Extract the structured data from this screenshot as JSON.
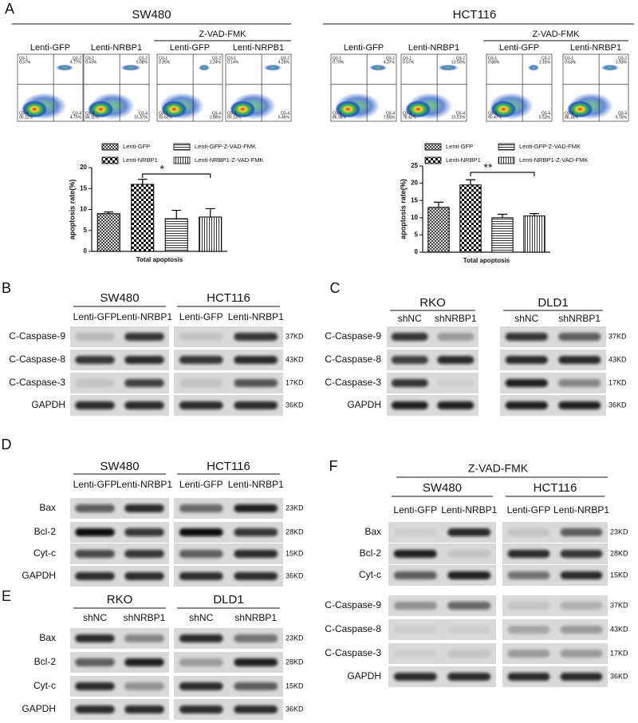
{
  "panel_a": {
    "label": "A",
    "groups": [
      {
        "cell_line": "SW480",
        "treatment": "Z-VAD-FMK",
        "samples": [
          {
            "name": "Lenti-GFP",
            "quadrants": [
              [
                "Q3-1",
                "0.37%"
              ],
              [
                "Q3-2",
                "4.77%"
              ],
              [
                "Q3-3",
                "90.12%"
              ],
              [
                "Q3-4",
                "4.75%"
              ]
            ]
          },
          {
            "name": "Lenti-NRBP1",
            "quadrants": [
              [
                "Q3-1",
                "0.43%"
              ],
              [
                "Q3-2",
                "5.08%"
              ],
              [
                "Q3-3",
                "84.11%"
              ],
              [
                "Q3-4",
                "10.37%"
              ]
            ]
          },
          {
            "name": "Lenti-GFP",
            "quadrants": [
              [
                "Q3-1",
                "0.35%"
              ],
              [
                "Q3-2",
                "2.24%"
              ],
              [
                "Q3-3",
                "93.53%"
              ],
              [
                "Q3-4",
                "2.88%"
              ]
            ]
          },
          {
            "name": "Lenti-NRPB1",
            "quadrants": [
              [
                "Q3-1",
                "0.14%"
              ],
              [
                "Q3-2",
                "4.26%"
              ],
              [
                "Q3-3",
                "90.13%"
              ],
              [
                "Q3-4",
                "5.46%"
              ]
            ]
          }
        ]
      },
      {
        "cell_line": "HCT116",
        "treatment": "Z-VAD-FMK",
        "samples": [
          {
            "name": "Lenti-GFP",
            "quadrants": [
              [
                "Q3-1",
                "0.79%"
              ],
              [
                "Q3-2",
                "4.37%"
              ],
              [
                "Q3-3",
                "86.98%"
              ],
              [
                "Q3-4",
                "7.85%"
              ]
            ]
          },
          {
            "name": "Lenti-NRBP1",
            "quadrants": [
              [
                "Q3-1",
                "0.57%"
              ],
              [
                "Q3-2",
                "13.50%"
              ],
              [
                "Q3-3",
                "78.42%"
              ],
              [
                "Q3-4",
                "15.51%"
              ]
            ]
          },
          {
            "name": "Lenti-GFP",
            "quadrants": [
              [
                "Q3-1",
                "0.88%"
              ],
              [
                "Q3-2",
                "3.15%"
              ],
              [
                "Q3-3",
                "90.47%"
              ],
              [
                "Q3-4",
                "5.53%"
              ]
            ]
          },
          {
            "name": "Lenti-NRBP1",
            "quadrants": [
              [
                "Q3-1",
                "0.63%"
              ],
              [
                "Q3-2",
                "3.93%"
              ],
              [
                "Q3-3",
                "88.16%"
              ],
              [
                "Q3-4",
                "6.76%"
              ]
            ]
          }
        ]
      }
    ]
  },
  "chart_data": [
    {
      "type": "bar",
      "categories": [
        "Total apoptosis"
      ],
      "ylabel": "apoptosis rate(%)",
      "annotation": "*",
      "ylim": [
        0,
        20
      ],
      "yticks": [
        0,
        5,
        10,
        15,
        20
      ],
      "series": [
        {
          "name": "Lenti-GFP",
          "pattern": "crosshatch",
          "color": "#000000",
          "values": [
            9
          ],
          "errors": [
            0.4
          ]
        },
        {
          "name": "Lenti-NRBP1",
          "pattern": "checker",
          "color": "#000000",
          "values": [
            16
          ],
          "errors": [
            1.2
          ]
        },
        {
          "name": "Lenti-GFP-Z-VAD-FMK",
          "pattern": "horizontal",
          "color": "#000000",
          "values": [
            7.8
          ],
          "errors": [
            2
          ]
        },
        {
          "name": "Lenti-NRBP1-Z-VAD-FMK",
          "pattern": "vertical",
          "color": "#000000",
          "values": [
            8.2
          ],
          "errors": [
            2
          ]
        }
      ]
    },
    {
      "type": "bar",
      "categories": [
        "Total apoptosis"
      ],
      "ylabel": "apoptosis rate(%)",
      "annotation": "**",
      "ylim": [
        0,
        25
      ],
      "yticks": [
        0,
        5,
        10,
        15,
        20,
        25
      ],
      "series": [
        {
          "name": "Lenti-GFP",
          "pattern": "crosshatch",
          "color": "#000000",
          "values": [
            13
          ],
          "errors": [
            1.5
          ]
        },
        {
          "name": "Lenti-NRBP1",
          "pattern": "checker",
          "color": "#000000",
          "values": [
            19.5
          ],
          "errors": [
            1.5
          ]
        },
        {
          "name": "Lenti-GFP-Z-VAD-FMK",
          "pattern": "horizontal",
          "color": "#000000",
          "values": [
            10
          ],
          "errors": [
            1
          ]
        },
        {
          "name": "Lenti-NRBP1-Z-VAD-FMK",
          "pattern": "vertical",
          "color": "#000000",
          "values": [
            10.5
          ],
          "errors": [
            0.7
          ]
        }
      ]
    }
  ],
  "blots": {
    "B": {
      "label": "B",
      "groups": [
        {
          "header": "SW480",
          "lanes": [
            "Lenti-GFP",
            "Lenti-NRBP1"
          ]
        },
        {
          "header": "HCT116",
          "lanes": [
            "Lenti-GFP",
            "Lenti-NRBP1"
          ]
        }
      ],
      "rows": [
        {
          "protein": "C-Caspase-9",
          "size": "37KD"
        },
        {
          "protein": "C-Caspase-8",
          "size": "43KD"
        },
        {
          "protein": "C-Caspase-3",
          "size": "17KD"
        },
        {
          "protein": "GAPDH",
          "size": "36KD"
        }
      ]
    },
    "C": {
      "label": "C",
      "groups": [
        {
          "header": "RKO",
          "lanes": [
            "shNC",
            "shNRBP1"
          ]
        },
        {
          "header": "DLD1",
          "lanes": [
            "shNC",
            "shNRBP1"
          ]
        }
      ],
      "rows": [
        {
          "protein": "C-Caspase-9",
          "size": "37KD"
        },
        {
          "protein": "C-Caspase-8",
          "size": "43KD"
        },
        {
          "protein": "C-Caspase-3",
          "size": "17KD"
        },
        {
          "protein": "GAPDH",
          "size": "36KD"
        }
      ]
    },
    "D": {
      "label": "D",
      "groups": [
        {
          "header": "SW480",
          "lanes": [
            "Lenti-GFP",
            "Lenti-NRBP1"
          ]
        },
        {
          "header": "HCT116",
          "lanes": [
            "Lenti-GFP",
            "Lenti-NRBP1"
          ]
        }
      ],
      "rows": [
        {
          "protein": "Bax",
          "size": "23KD"
        },
        {
          "protein": "Bcl-2",
          "size": "28KD"
        },
        {
          "protein": "Cyt-c",
          "size": "15KD"
        },
        {
          "protein": "GAPDH",
          "size": "36KD"
        }
      ]
    },
    "E": {
      "label": "E",
      "groups": [
        {
          "header": "RKO",
          "lanes": [
            "shNC",
            "shNRBP1"
          ]
        },
        {
          "header": "DLD1",
          "lanes": [
            "shNC",
            "shNRBP1"
          ]
        }
      ],
      "rows": [
        {
          "protein": "Bax",
          "size": "23KD"
        },
        {
          "protein": "Bcl-2",
          "size": "28KD"
        },
        {
          "protein": "Cyt-c",
          "size": "15KD"
        },
        {
          "protein": "GAPDH",
          "size": "36KD"
        }
      ]
    },
    "F": {
      "label": "F",
      "treatment": "Z-VAD-FMK",
      "groups": [
        {
          "header": "SW480",
          "lanes": [
            "Lenti-GFP",
            "Lenti-NRBP1"
          ]
        },
        {
          "header": "HCT116",
          "lanes": [
            "Lenti-GFP",
            "Lenti-NRBP1"
          ]
        }
      ],
      "rows": [
        {
          "protein": "Bax",
          "size": "23KD"
        },
        {
          "protein": "Bcl-2",
          "size": "28KD"
        },
        {
          "protein": "Cyt-c",
          "size": "15KD"
        },
        {
          "protein": "C-Caspase-9",
          "size": "37KD"
        },
        {
          "protein": "C-Caspase-8",
          "size": "43KD"
        },
        {
          "protein": "C-Caspase-3",
          "size": "17KD"
        },
        {
          "protein": "GAPDH",
          "size": "36KD"
        }
      ]
    }
  }
}
